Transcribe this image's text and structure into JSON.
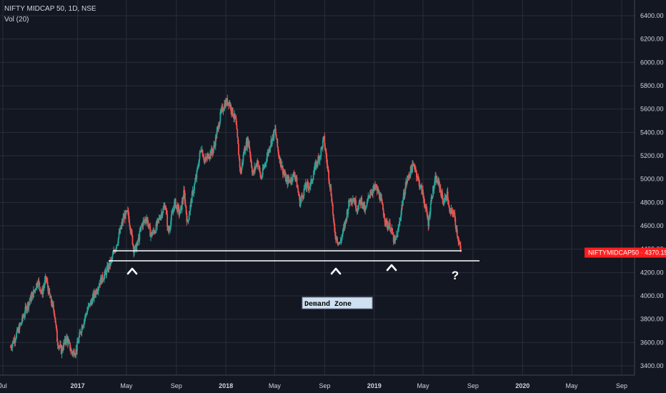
{
  "header": {
    "symbol_line": "NIFTY MIDCAP 50, 1D, NSE",
    "indicator": "Vol (20)"
  },
  "price_tag": {
    "symbol": "NIFTYMIDCAP50",
    "value": "4370.15"
  },
  "annotations": {
    "demand_zone_label": "Demand Zone",
    "question_mark": "?",
    "caret": "^"
  },
  "colors": {
    "background": "#131722",
    "grid": "#2a2e39",
    "up": "#26a69a",
    "down": "#ef5350",
    "tag_bg": "#ff1e1e",
    "zone_bg": "#cfe0f0"
  },
  "chart_data": {
    "type": "candlestick",
    "y_ticks": [
      "6400.00",
      "6200.00",
      "6000.00",
      "5800.00",
      "5600.00",
      "5400.00",
      "5200.00",
      "5000.00",
      "4800.00",
      "4600.00",
      "4400.00",
      "4200.00",
      "4000.00",
      "3800.00",
      "3600.00",
      "3400.00"
    ],
    "ylim": [
      3350,
      6490
    ],
    "x_ticks": [
      {
        "label": "Jul",
        "date": "2016-07-01",
        "bold": false
      },
      {
        "label": "2017",
        "date": "2017-01-01",
        "bold": true
      },
      {
        "label": "May",
        "date": "2017-05-01",
        "bold": false
      },
      {
        "label": "Sep",
        "date": "2017-09-01",
        "bold": false
      },
      {
        "label": "2018",
        "date": "2018-01-01",
        "bold": true
      },
      {
        "label": "May",
        "date": "2018-05-01",
        "bold": false
      },
      {
        "label": "Sep",
        "date": "2018-09-01",
        "bold": false
      },
      {
        "label": "2019",
        "date": "2019-01-01",
        "bold": true
      },
      {
        "label": "May",
        "date": "2019-05-01",
        "bold": false
      },
      {
        "label": "Sep",
        "date": "2019-09-01",
        "bold": false
      },
      {
        "label": "2020",
        "date": "2020-01-01",
        "bold": true
      },
      {
        "label": "May",
        "date": "2020-05-01",
        "bold": false
      },
      {
        "label": "Sep",
        "date": "2020-09-01",
        "bold": false
      }
    ],
    "price_path": [
      [
        "2016-07-20",
        3560
      ],
      [
        "2016-08-10",
        3720
      ],
      [
        "2016-08-28",
        3900
      ],
      [
        "2016-09-15",
        4030
      ],
      [
        "2016-09-25",
        4130
      ],
      [
        "2016-10-05",
        4020
      ],
      [
        "2016-10-15",
        4150
      ],
      [
        "2016-10-25",
        3980
      ],
      [
        "2016-11-05",
        3860
      ],
      [
        "2016-11-12",
        3610
      ],
      [
        "2016-11-22",
        3530
      ],
      [
        "2016-12-05",
        3640
      ],
      [
        "2016-12-18",
        3510
      ],
      [
        "2016-12-28",
        3530
      ],
      [
        "2017-01-10",
        3720
      ],
      [
        "2017-01-25",
        3880
      ],
      [
        "2017-02-10",
        4000
      ],
      [
        "2017-02-25",
        4120
      ],
      [
        "2017-03-10",
        4190
      ],
      [
        "2017-03-25",
        4300
      ],
      [
        "2017-04-10",
        4480
      ],
      [
        "2017-04-25",
        4680
      ],
      [
        "2017-05-05",
        4710
      ],
      [
        "2017-05-12",
        4560
      ],
      [
        "2017-05-20",
        4380
      ],
      [
        "2017-05-28",
        4440
      ],
      [
        "2017-06-08",
        4610
      ],
      [
        "2017-06-20",
        4670
      ],
      [
        "2017-06-30",
        4520
      ],
      [
        "2017-07-10",
        4560
      ],
      [
        "2017-07-25",
        4700
      ],
      [
        "2017-08-05",
        4780
      ],
      [
        "2017-08-12",
        4540
      ],
      [
        "2017-08-20",
        4670
      ],
      [
        "2017-08-28",
        4800
      ],
      [
        "2017-09-10",
        4700
      ],
      [
        "2017-09-20",
        4890
      ],
      [
        "2017-09-28",
        4620
      ],
      [
        "2017-10-10",
        4860
      ],
      [
        "2017-10-20",
        5020
      ],
      [
        "2017-11-01",
        5280
      ],
      [
        "2017-11-10",
        5150
      ],
      [
        "2017-11-20",
        5210
      ],
      [
        "2017-12-01",
        5250
      ],
      [
        "2017-12-10",
        5400
      ],
      [
        "2017-12-20",
        5570
      ],
      [
        "2017-12-30",
        5650
      ],
      [
        "2018-01-08",
        5670
      ],
      [
        "2018-01-15",
        5590
      ],
      [
        "2018-01-25",
        5500
      ],
      [
        "2018-02-06",
        5040
      ],
      [
        "2018-02-15",
        5250
      ],
      [
        "2018-02-25",
        5340
      ],
      [
        "2018-03-08",
        5040
      ],
      [
        "2018-03-20",
        5160
      ],
      [
        "2018-03-28",
        5000
      ],
      [
        "2018-04-10",
        5170
      ],
      [
        "2018-04-20",
        5300
      ],
      [
        "2018-05-02",
        5420
      ],
      [
        "2018-05-10",
        5220
      ],
      [
        "2018-05-20",
        5090
      ],
      [
        "2018-05-30",
        4980
      ],
      [
        "2018-06-10",
        5000
      ],
      [
        "2018-06-20",
        5050
      ],
      [
        "2018-07-02",
        4800
      ],
      [
        "2018-07-15",
        4930
      ],
      [
        "2018-07-28",
        4950
      ],
      [
        "2018-08-10",
        5120
      ],
      [
        "2018-08-20",
        5200
      ],
      [
        "2018-08-30",
        5350
      ],
      [
        "2018-09-08",
        5100
      ],
      [
        "2018-09-18",
        4850
      ],
      [
        "2018-09-25",
        4540
      ],
      [
        "2018-10-08",
        4440
      ],
      [
        "2018-10-20",
        4600
      ],
      [
        "2018-11-01",
        4820
      ],
      [
        "2018-11-10",
        4840
      ],
      [
        "2018-11-20",
        4750
      ],
      [
        "2018-11-30",
        4820
      ],
      [
        "2018-12-10",
        4720
      ],
      [
        "2018-12-20",
        4880
      ],
      [
        "2019-01-05",
        4930
      ],
      [
        "2019-01-15",
        4850
      ],
      [
        "2019-01-30",
        4620
      ],
      [
        "2019-02-10",
        4590
      ],
      [
        "2019-02-20",
        4450
      ],
      [
        "2019-03-01",
        4560
      ],
      [
        "2019-03-10",
        4770
      ],
      [
        "2019-03-20",
        4960
      ],
      [
        "2019-04-01",
        5080
      ],
      [
        "2019-04-10",
        5120
      ],
      [
        "2019-04-20",
        4980
      ],
      [
        "2019-04-30",
        4880
      ],
      [
        "2019-05-08",
        4740
      ],
      [
        "2019-05-14",
        4620
      ],
      [
        "2019-05-22",
        4850
      ],
      [
        "2019-06-01",
        5000
      ],
      [
        "2019-06-10",
        4950
      ],
      [
        "2019-06-20",
        4800
      ],
      [
        "2019-06-30",
        4870
      ],
      [
        "2019-07-05",
        4710
      ],
      [
        "2019-07-15",
        4720
      ],
      [
        "2019-07-25",
        4520
      ],
      [
        "2019-08-02",
        4370
      ]
    ]
  }
}
